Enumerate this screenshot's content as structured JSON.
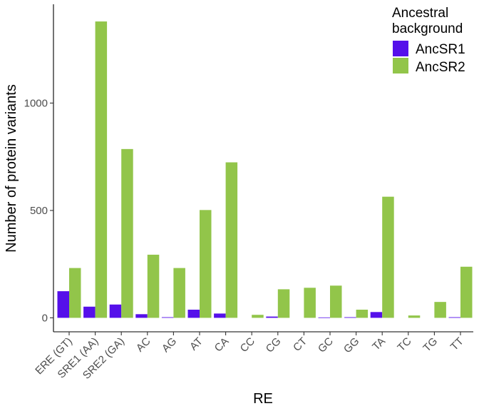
{
  "chart_data": {
    "type": "bar",
    "xlabel": "RE",
    "ylabel": "Number of protein variants",
    "ylim": [
      -65,
      1460
    ],
    "yticks": [
      0,
      500,
      1000
    ],
    "categories": [
      "ERE (GT)",
      "SRE1 (AA)",
      "SRE2 (GA)",
      "AC",
      "AG",
      "AT",
      "CA",
      "CC",
      "CG",
      "CT",
      "GC",
      "GG",
      "TA",
      "TC",
      "TG",
      "TT"
    ],
    "legend": {
      "title_lines": [
        "Ancestral",
        "background"
      ],
      "position": "top-right"
    },
    "series": [
      {
        "name": "AncSR1",
        "color": "#5510ea",
        "values": [
          124,
          52,
          62,
          17,
          3,
          38,
          20,
          0,
          6,
          0,
          2,
          3,
          27,
          0,
          0,
          3
        ]
      },
      {
        "name": "AncSR2",
        "color": "#92c54a",
        "values": [
          232,
          1380,
          786,
          294,
          232,
          502,
          724,
          14,
          133,
          140,
          150,
          38,
          564,
          11,
          74,
          238
        ]
      }
    ]
  }
}
